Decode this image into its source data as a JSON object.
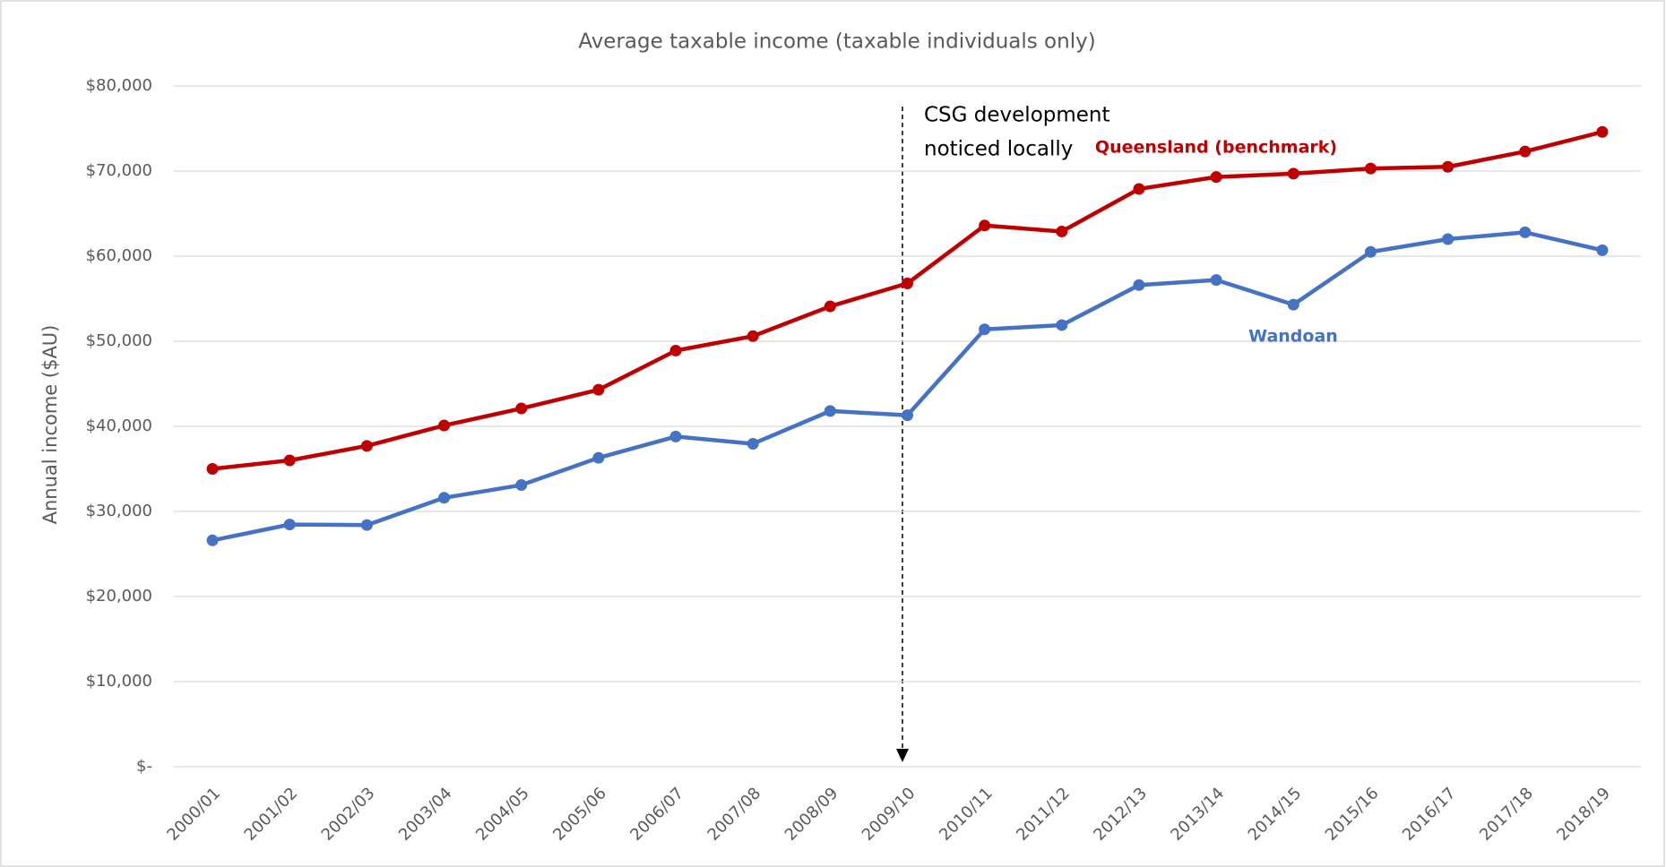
{
  "chart_data": {
    "type": "line",
    "title": "Average taxable income (taxable individuals only)",
    "y_label": "Annual income ($AU)",
    "categories": [
      "2000/01",
      "2001/02",
      "2002/03",
      "2003/04",
      "2004/05",
      "2005/06",
      "2006/07",
      "2007/08",
      "2008/09",
      "2009/10",
      "2010/11",
      "2011/12",
      "2012/13",
      "2013/14",
      "2014/15",
      "2015/16",
      "2016/17",
      "2017/18",
      "2018/19"
    ],
    "series": [
      {
        "name": "Queensland (benchmark)",
        "color": "#c00000",
        "values": [
          35000,
          36000,
          37700,
          40100,
          42100,
          44300,
          48900,
          50600,
          54100,
          56800,
          63600,
          62900,
          67900,
          69300,
          69700,
          70300,
          70500,
          72300,
          74600
        ]
      },
      {
        "name": "Wandoan",
        "color": "#4472c4",
        "values": [
          26600,
          28460,
          28400,
          31600,
          33100,
          36300,
          38800,
          37950,
          41800,
          41300,
          51400,
          51900,
          56600,
          57200,
          54300,
          60500,
          62000,
          62800,
          60700
        ]
      }
    ],
    "annotation": [
      "CSG development",
      "noticed locally"
    ],
    "ylim": [
      0,
      80000
    ],
    "yticks": [
      {
        "value": 0,
        "label": "$-"
      },
      {
        "value": 10000,
        "label": "$10,000"
      },
      {
        "value": 20000,
        "label": "$20,000"
      },
      {
        "value": 30000,
        "label": "$30,000"
      },
      {
        "value": 40000,
        "label": "$40,000"
      },
      {
        "value": 50000,
        "label": "$50,000"
      },
      {
        "value": 60000,
        "label": "$60,000"
      },
      {
        "value": 70000,
        "label": "$70,000"
      },
      {
        "value": 80000,
        "label": "$80,000"
      }
    ],
    "grid": true
  }
}
